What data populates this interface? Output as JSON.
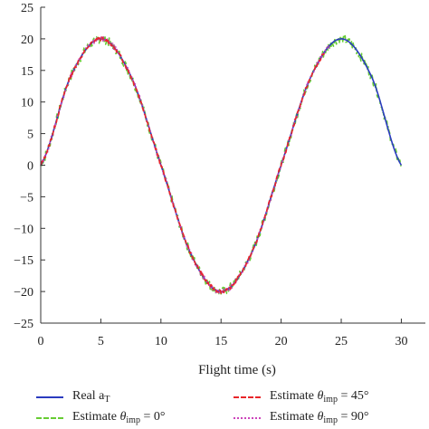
{
  "chart_data": {
    "type": "line",
    "xlabel": "Flight time (s)",
    "ylabel": "",
    "xlim": [
      0,
      32
    ],
    "ylim": [
      -25,
      25
    ],
    "xticks": [
      0,
      5,
      10,
      15,
      20,
      25,
      30
    ],
    "yticks": [
      25,
      20,
      15,
      10,
      5,
      0,
      -5,
      -10,
      -15,
      -20,
      -25
    ],
    "grid": false,
    "legend_position": "bottom",
    "series": [
      {
        "name": "Real a_T",
        "color": "#2b3bbf",
        "style": "solid",
        "x": [
          0,
          2.5,
          5,
          7.5,
          10,
          12.5,
          15,
          17.5,
          20,
          22.5,
          25,
          27.5,
          30
        ],
        "y": [
          0,
          14.1,
          20,
          14.1,
          0,
          -14.1,
          -20,
          -14.1,
          0,
          14.1,
          20,
          14.1,
          0
        ]
      },
      {
        "name": "Estimate θimp = 0°",
        "color": "#66cc33",
        "style": "dashed",
        "x": [
          0,
          2.5,
          5,
          7.5,
          10,
          12.5,
          15,
          17.5,
          20,
          22.5,
          25,
          27.5,
          30
        ],
        "y": [
          0,
          14.1,
          20,
          14.1,
          0,
          -14.1,
          -20,
          -14.1,
          0,
          14.1,
          20,
          14.1,
          0
        ]
      },
      {
        "name": "Estimate θimp = 45°",
        "color": "#e8262a",
        "style": "dashed",
        "x": [
          0,
          2.5,
          5,
          7.5,
          10,
          12.5,
          15,
          17.5,
          20,
          22.5,
          25,
          27.5,
          30
        ],
        "y": [
          0,
          14.1,
          20,
          14.1,
          0,
          -14.1,
          -20,
          -14.1,
          0,
          14.1,
          20,
          14.1,
          0
        ]
      },
      {
        "name": "Estimate θimp = 90°",
        "color": "#cc44bb",
        "style": "dotted",
        "x": [
          0,
          2.5,
          5,
          7.5,
          10,
          12.5,
          15,
          17.5,
          20,
          22.5,
          25,
          27.5,
          30
        ],
        "y": [
          0,
          14.1,
          20,
          14.1,
          0,
          -14.1,
          -20,
          -14.1,
          0,
          14.1,
          20,
          14.1,
          0
        ]
      }
    ]
  },
  "legend": {
    "real": {
      "main": "Real a",
      "sub": "T"
    },
    "est0": {
      "prefix": "Estimate ",
      "theta": "θ",
      "sub": "imp",
      "suffix": " = 0°"
    },
    "est45": {
      "prefix": "Estimate ",
      "theta": "θ",
      "sub": "imp",
      "suffix": " = 45°"
    },
    "est90": {
      "prefix": "Estimate ",
      "theta": "θ",
      "sub": "imp",
      "suffix": " = 90°"
    }
  }
}
